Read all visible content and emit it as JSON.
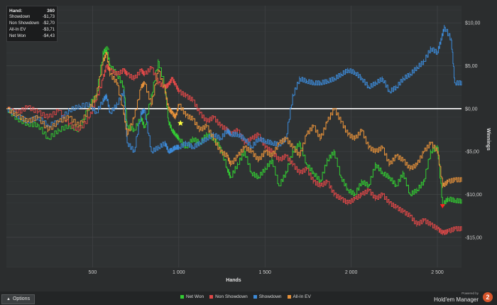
{
  "stats": {
    "rows": [
      {
        "label": "Hand:",
        "value": "360"
      },
      {
        "label": "Showdown",
        "value": "-$1,73"
      },
      {
        "label": "Non Showdown",
        "value": "-$2,70"
      },
      {
        "label": "All-In EV",
        "value": "-$3,71"
      },
      {
        "label": "Net Won",
        "value": "-$4,43"
      }
    ]
  },
  "options_label": "Options",
  "brand": {
    "powered_by": "Powered by",
    "name": "Hold'em Manager",
    "logo_text": "2"
  },
  "chart_data": {
    "type": "line",
    "xlabel": "Hands",
    "ylabel": "Winnings",
    "xlim": [
      0,
      2640
    ],
    "ylim": [
      -18.5,
      12
    ],
    "x_ticks": [
      500,
      1000,
      1500,
      2000,
      2500
    ],
    "x_tick_labels": [
      "500",
      "1 000",
      "1 500",
      "2 000",
      "2 500"
    ],
    "y_ticks": [
      10,
      5,
      0,
      -5,
      -10,
      -15
    ],
    "y_tick_labels": [
      "$10,00",
      "$5,00",
      "$0,00",
      "-$5,00",
      "-$10,00",
      "-$15,00"
    ],
    "grid": true,
    "zero_line": true,
    "legend_position": "bottom",
    "series": [
      {
        "name": "Net Won",
        "color": "#33cc33",
        "x": [
          0,
          60,
          120,
          180,
          240,
          300,
          360,
          420,
          480,
          520,
          560,
          580,
          600,
          640,
          680,
          700,
          740,
          780,
          800,
          840,
          880,
          920,
          940,
          960,
          980,
          1000,
          1040,
          1080,
          1120,
          1160,
          1200,
          1240,
          1280,
          1300,
          1340,
          1380,
          1420,
          1460,
          1500,
          1540,
          1580,
          1620,
          1660,
          1700,
          1740,
          1780,
          1820,
          1860,
          1900,
          1940,
          1980,
          2020,
          2060,
          2100,
          2140,
          2180,
          2220,
          2260,
          2300,
          2340,
          2380,
          2420,
          2460,
          2500,
          2530,
          2560,
          2600,
          2640
        ],
        "values": [
          0,
          -1.2,
          -1.8,
          -1.9,
          -3.5,
          -2.5,
          -2.0,
          -2.5,
          0.5,
          1.5,
          6.5,
          7.0,
          5.0,
          4.0,
          2.5,
          -2.0,
          -2.5,
          -1.0,
          -2.2,
          1.5,
          5.5,
          2.5,
          -1.5,
          -2.5,
          -3.0,
          -3.5,
          -4.5,
          -3.5,
          -4.0,
          -3.0,
          -3.5,
          -4.5,
          -7.0,
          -8.0,
          -6.5,
          -5.0,
          -7.5,
          -8.0,
          -7.0,
          -6.0,
          -9.0,
          -7.5,
          -5.0,
          -4.0,
          -6.5,
          -7.5,
          -8.5,
          -6.0,
          -5.0,
          -8.0,
          -9.5,
          -10.0,
          -8.5,
          -9.0,
          -6.5,
          -7.5,
          -8.0,
          -9.0,
          -7.5,
          -10.0,
          -9.5,
          -8.5,
          -5.0,
          -4.5,
          -11.2,
          -10.5,
          -10.7,
          -10.8
        ]
      },
      {
        "name": "Non Showdown",
        "color": "#e04848",
        "x": [
          0,
          60,
          120,
          180,
          240,
          300,
          360,
          420,
          480,
          520,
          560,
          580,
          600,
          640,
          680,
          700,
          740,
          780,
          800,
          840,
          880,
          920,
          940,
          960,
          980,
          1000,
          1040,
          1080,
          1120,
          1160,
          1200,
          1240,
          1280,
          1300,
          1340,
          1380,
          1420,
          1460,
          1500,
          1540,
          1580,
          1620,
          1660,
          1700,
          1740,
          1780,
          1820,
          1860,
          1900,
          1940,
          1980,
          2020,
          2060,
          2100,
          2140,
          2180,
          2220,
          2260,
          2300,
          2340,
          2380,
          2420,
          2460,
          2500,
          2530,
          2560,
          2600,
          2640
        ],
        "values": [
          0,
          -0.5,
          0.2,
          -0.4,
          -1.0,
          -0.2,
          -1.8,
          -2.5,
          -1.0,
          1.0,
          3.5,
          5.0,
          4.5,
          4.0,
          4.5,
          4.0,
          3.5,
          4.5,
          4.0,
          4.8,
          3.0,
          2.5,
          2.8,
          3.5,
          2.8,
          2.0,
          1.5,
          1.0,
          -0.5,
          -1.5,
          -1.0,
          -2.0,
          -2.5,
          -3.0,
          -2.5,
          -4.0,
          -3.5,
          -3.0,
          -4.5,
          -5.0,
          -6.0,
          -5.5,
          -6.5,
          -7.5,
          -7.0,
          -8.5,
          -9.0,
          -8.5,
          -10.0,
          -10.5,
          -11.0,
          -10.5,
          -10.0,
          -9.5,
          -10.5,
          -10.0,
          -11.0,
          -11.5,
          -12.0,
          -12.5,
          -13.5,
          -13.0,
          -13.5,
          -14.0,
          -14.5,
          -14.3,
          -14.0,
          -14.0
        ]
      },
      {
        "name": "Showdown",
        "color": "#3c8ad8",
        "x": [
          0,
          60,
          120,
          180,
          240,
          300,
          360,
          420,
          480,
          520,
          560,
          580,
          600,
          640,
          680,
          700,
          740,
          780,
          800,
          840,
          880,
          920,
          940,
          960,
          980,
          1000,
          1040,
          1080,
          1120,
          1160,
          1200,
          1240,
          1280,
          1300,
          1340,
          1380,
          1420,
          1460,
          1500,
          1540,
          1580,
          1620,
          1660,
          1700,
          1740,
          1780,
          1820,
          1860,
          1900,
          1940,
          1980,
          2020,
          2060,
          2100,
          2140,
          2180,
          2220,
          2260,
          2300,
          2340,
          2380,
          2420,
          2460,
          2500,
          2520,
          2540,
          2580,
          2600,
          2640
        ],
        "values": [
          0,
          -0.8,
          -1.5,
          -1.0,
          -2.0,
          -1.5,
          -0.2,
          0.3,
          0.5,
          -0.5,
          1.0,
          1.5,
          -0.5,
          0.5,
          2.0,
          -4.0,
          -5.0,
          -0.5,
          -0.2,
          -5.0,
          -4.5,
          -4.0,
          -5.0,
          -4.8,
          -4.5,
          -4.5,
          -4.0,
          -4.5,
          -4.0,
          -3.5,
          -3.0,
          -3.5,
          -2.5,
          -3.0,
          -3.0,
          -3.5,
          -4.5,
          -3.5,
          -3.8,
          -4.0,
          -4.2,
          -3.5,
          1.5,
          3.5,
          3.2,
          3.0,
          3.0,
          3.2,
          3.5,
          4.0,
          4.5,
          4.2,
          3.5,
          2.5,
          3.0,
          3.5,
          2.0,
          2.5,
          3.5,
          4.0,
          4.8,
          5.5,
          7.0,
          6.5,
          8.0,
          9.5,
          8.0,
          3.0,
          3.0
        ]
      },
      {
        "name": "All-In EV",
        "color": "#e8923a",
        "x": [
          0,
          60,
          120,
          180,
          240,
          300,
          360,
          420,
          480,
          520,
          560,
          580,
          600,
          640,
          680,
          700,
          740,
          780,
          800,
          840,
          880,
          920,
          940,
          960,
          980,
          1000,
          1040,
          1080,
          1120,
          1160,
          1200,
          1240,
          1280,
          1300,
          1340,
          1380,
          1420,
          1460,
          1500,
          1540,
          1580,
          1620,
          1660,
          1700,
          1740,
          1780,
          1820,
          1860,
          1900,
          1940,
          1980,
          2020,
          2060,
          2100,
          2140,
          2180,
          2220,
          2260,
          2300,
          2340,
          2380,
          2420,
          2460,
          2500,
          2530,
          2560,
          2600,
          2640
        ],
        "values": [
          0,
          -0.8,
          -1.5,
          -1.0,
          -2.5,
          -1.5,
          -1.0,
          -2.0,
          0.0,
          1.5,
          5.5,
          6.5,
          4.0,
          3.0,
          -0.5,
          -3.0,
          -1.0,
          2.5,
          3.0,
          0.5,
          4.5,
          2.0,
          0.0,
          -0.5,
          -1.0,
          0.5,
          -0.8,
          -1.2,
          -2.5,
          -2.0,
          -3.5,
          -5.0,
          -5.5,
          -6.5,
          -5.5,
          -4.5,
          -5.0,
          -6.0,
          -5.0,
          -5.5,
          -4.0,
          -3.5,
          -4.5,
          -5.5,
          -3.0,
          -2.0,
          -3.5,
          -1.5,
          0.0,
          -1.5,
          -3.0,
          -3.5,
          -2.5,
          -4.5,
          -5.0,
          -4.5,
          -6.5,
          -5.5,
          -6.0,
          -7.0,
          -6.5,
          -5.0,
          -4.0,
          -5.0,
          -9.0,
          -8.5,
          -8.3,
          -8.3
        ]
      }
    ],
    "markers": [
      {
        "name": "max-marker",
        "x": 585,
        "y": 7.0,
        "color": "#2e9b2e",
        "shape": "triangle-up"
      },
      {
        "name": "star-marker",
        "x": 1010,
        "y": -1.7,
        "color": "#ffff40",
        "shape": "star"
      },
      {
        "name": "min-marker",
        "x": 2530,
        "y": -11.3,
        "color": "#ff2020",
        "shape": "triangle-down"
      }
    ]
  }
}
